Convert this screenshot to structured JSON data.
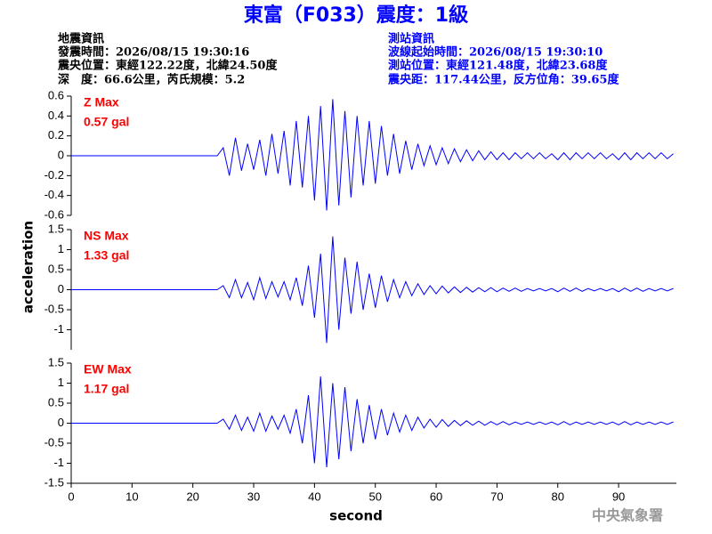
{
  "header": {
    "title": "東富（F033）震度：1級",
    "left": [
      "地震資訊",
      "發震時間：2026/08/15 19:30:16",
      "震央位置：東經122.22度，北緯24.50度",
      "深　度：66.6公里，芮氏規模：5.2"
    ],
    "right": [
      "測站資訊",
      "波線起始時間：2026/08/15 19:30:10",
      "測站位置：東經121.48度，北緯23.68度",
      "震央距：117.44公里，反方位角：39.65度"
    ],
    "x_label": "second",
    "y_label": "acceleration",
    "footer": "中央氣象署"
  },
  "chart_data": [
    {
      "type": "line",
      "annotation": "Z Max",
      "max_label": "0.57 gal",
      "ylim": [
        -0.6,
        0.6
      ],
      "yticks": [
        -0.6,
        -0.4,
        -0.2,
        0,
        0.2,
        0.4,
        0.6
      ],
      "xlim": [
        0,
        99.5
      ],
      "series": [
        {
          "name": "Z",
          "color": "#0000ff",
          "x": [
            0,
            24,
            25,
            26,
            27,
            28,
            29,
            30,
            31,
            32,
            33,
            34,
            35,
            36,
            37,
            38,
            39,
            40,
            41,
            42,
            43,
            44,
            45,
            46,
            47,
            48,
            49,
            50,
            51,
            52,
            53,
            54,
            55,
            56,
            57,
            58,
            59,
            60,
            61,
            62,
            63,
            64,
            65,
            66,
            67,
            68,
            69,
            70,
            71,
            72,
            73,
            74,
            75,
            76,
            77,
            78,
            79,
            80,
            81,
            82,
            83,
            84,
            85,
            86,
            87,
            88,
            89,
            90,
            91,
            92,
            93,
            94,
            95,
            96,
            97,
            98,
            99
          ],
          "values": [
            0,
            0,
            0.08,
            -0.2,
            0.18,
            -0.15,
            0.12,
            -0.14,
            0.16,
            -0.2,
            0.22,
            -0.18,
            0.25,
            -0.3,
            0.35,
            -0.32,
            0.4,
            -0.45,
            0.5,
            -0.55,
            0.57,
            -0.5,
            0.45,
            -0.42,
            0.4,
            -0.3,
            0.35,
            -0.28,
            0.3,
            -0.2,
            0.22,
            -0.18,
            0.15,
            -0.14,
            0.12,
            -0.1,
            0.1,
            -0.09,
            0.08,
            -0.08,
            0.07,
            -0.06,
            0.06,
            -0.05,
            0.05,
            -0.04,
            0.04,
            -0.04,
            0.03,
            -0.04,
            0.03,
            -0.03,
            0.03,
            -0.03,
            0.03,
            -0.03,
            0.02,
            -0.04,
            0.03,
            -0.04,
            0.03,
            -0.03,
            0.03,
            -0.03,
            0.03,
            -0.03,
            0.02,
            -0.04,
            0.03,
            -0.04,
            0.03,
            -0.03,
            0.03,
            -0.03,
            0.03,
            -0.03,
            0.02
          ]
        }
      ]
    },
    {
      "type": "line",
      "annotation": "NS Max",
      "max_label": "1.33 gal",
      "ylim": [
        -1.5,
        1.5
      ],
      "yticks": [
        -1,
        -0.5,
        0,
        0.5,
        1,
        1.5
      ],
      "xlim": [
        0,
        99.5
      ],
      "series": [
        {
          "name": "NS",
          "color": "#0000ff",
          "x": [
            0,
            24,
            25,
            26,
            27,
            28,
            29,
            30,
            31,
            32,
            33,
            34,
            35,
            36,
            37,
            38,
            39,
            40,
            41,
            42,
            43,
            44,
            45,
            46,
            47,
            48,
            49,
            50,
            51,
            52,
            53,
            54,
            55,
            56,
            57,
            58,
            59,
            60,
            61,
            62,
            63,
            64,
            65,
            66,
            67,
            68,
            69,
            70,
            71,
            72,
            73,
            74,
            75,
            76,
            77,
            78,
            79,
            80,
            81,
            82,
            83,
            84,
            85,
            86,
            87,
            88,
            89,
            90,
            91,
            92,
            93,
            94,
            95,
            96,
            97,
            98,
            99
          ],
          "values": [
            0,
            0,
            0.1,
            -0.2,
            0.25,
            -0.2,
            0.18,
            -0.25,
            0.3,
            -0.22,
            0.2,
            -0.18,
            0.2,
            -0.25,
            0.3,
            -0.4,
            0.6,
            -0.7,
            0.9,
            -1.33,
            1.33,
            -1.0,
            0.8,
            -0.6,
            0.7,
            -0.5,
            0.4,
            -0.45,
            0.35,
            -0.3,
            0.25,
            -0.2,
            0.2,
            -0.15,
            0.15,
            -0.12,
            0.1,
            -0.1,
            0.09,
            -0.08,
            0.07,
            -0.07,
            0.06,
            -0.06,
            0.05,
            -0.05,
            0.05,
            -0.05,
            0.04,
            -0.04,
            0.04,
            -0.04,
            0.03,
            -0.03,
            0.03,
            -0.03,
            0.03,
            -0.05,
            0.04,
            -0.04,
            0.04,
            -0.04,
            0.03,
            -0.03,
            0.03,
            -0.03,
            0.03,
            -0.05,
            0.04,
            -0.04,
            0.04,
            -0.04,
            0.03,
            -0.03,
            0.03,
            -0.03,
            0.03
          ]
        }
      ]
    },
    {
      "type": "line",
      "annotation": "EW Max",
      "max_label": "1.17 gal",
      "ylim": [
        -1.5,
        1.5
      ],
      "yticks": [
        -1.5,
        -1,
        -0.5,
        0,
        0.5,
        1,
        1.5
      ],
      "xlim": [
        0,
        99.5
      ],
      "xticks": [
        0,
        10,
        20,
        30,
        40,
        50,
        60,
        70,
        80,
        90
      ],
      "series": [
        {
          "name": "EW",
          "color": "#0000ff",
          "x": [
            0,
            24,
            25,
            26,
            27,
            28,
            29,
            30,
            31,
            32,
            33,
            34,
            35,
            36,
            37,
            38,
            39,
            40,
            41,
            42,
            43,
            44,
            45,
            46,
            47,
            48,
            49,
            50,
            51,
            52,
            53,
            54,
            55,
            56,
            57,
            58,
            59,
            60,
            61,
            62,
            63,
            64,
            65,
            66,
            67,
            68,
            69,
            70,
            71,
            72,
            73,
            74,
            75,
            76,
            77,
            78,
            79,
            80,
            81,
            82,
            83,
            84,
            85,
            86,
            87,
            88,
            89,
            90,
            91,
            92,
            93,
            94,
            95,
            96,
            97,
            98,
            99
          ],
          "values": [
            0,
            0,
            0.1,
            -0.15,
            0.2,
            -0.18,
            0.15,
            -0.2,
            0.25,
            -0.2,
            0.18,
            -0.15,
            0.2,
            -0.25,
            0.35,
            -0.5,
            0.7,
            -1.0,
            1.17,
            -1.1,
            1.0,
            -0.9,
            0.9,
            -0.7,
            0.6,
            -0.5,
            0.45,
            -0.4,
            0.35,
            -0.3,
            0.25,
            -0.22,
            0.2,
            -0.18,
            0.15,
            -0.12,
            0.1,
            -0.1,
            0.09,
            -0.08,
            0.07,
            -0.06,
            0.06,
            -0.05,
            0.05,
            -0.05,
            0.04,
            -0.04,
            0.04,
            -0.04,
            0.03,
            -0.03,
            0.03,
            -0.03,
            0.03,
            -0.03,
            0.03,
            -0.04,
            0.04,
            -0.04,
            0.03,
            -0.03,
            0.03,
            -0.03,
            0.03,
            -0.03,
            0.03,
            -0.04,
            0.04,
            -0.04,
            0.03,
            -0.03,
            0.03,
            -0.03,
            0.03,
            -0.03,
            0.03
          ]
        }
      ]
    }
  ]
}
